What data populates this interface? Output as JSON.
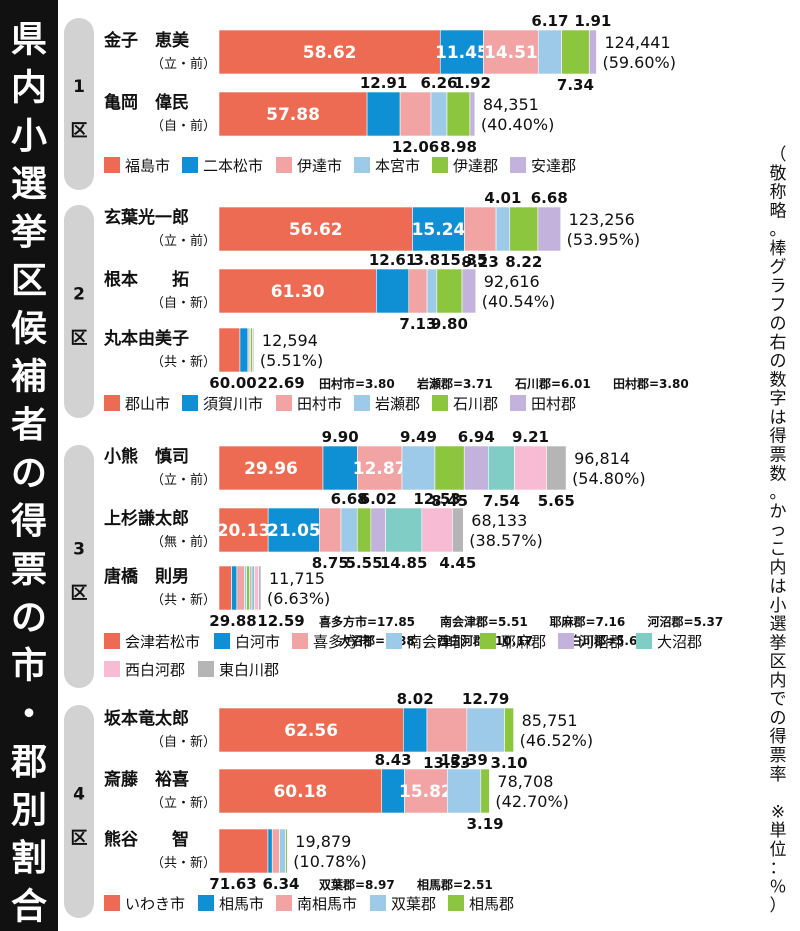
{
  "title": "県内小選挙区候補者の得票の市・郡別割合",
  "note": "（敬称略。棒グラフの右の数字は得票数。かっこ内は小選挙区内での得票率　※単位：％）",
  "colors": {
    "red": "#ec6b52",
    "blue": "#0f90d4",
    "pink": "#f2a3a3",
    "lightblue": "#9ecae9",
    "green": "#8cc63f",
    "lavender": "#c3b2dc",
    "teal": "#7fcdc4",
    "lightpink": "#f7bcd4",
    "gray": "#b5b5b5"
  },
  "chart_data": [
    {
      "type": "bar",
      "district": "1",
      "district_suffix": "区",
      "legend": [
        {
          "name": "福島市",
          "color": "red"
        },
        {
          "name": "二本松市",
          "color": "blue"
        },
        {
          "name": "伊達市",
          "color": "pink"
        },
        {
          "name": "本宮市",
          "color": "lightblue"
        },
        {
          "name": "伊達郡",
          "color": "green"
        },
        {
          "name": "安達郡",
          "color": "lavender"
        }
      ],
      "candidates": [
        {
          "name": "金子　恵美",
          "affil": "（立・前）",
          "votes": "124,441",
          "rate": "(59.60%)",
          "values": [
            58.62,
            11.45,
            14.51,
            6.17,
            7.34,
            1.91
          ]
        },
        {
          "name": "亀岡　偉民",
          "affil": "（自・前）",
          "votes": "84,351",
          "rate": "(40.40%)",
          "values": [
            57.88,
            12.91,
            12.06,
            6.26,
            8.98,
            1.92
          ]
        }
      ]
    },
    {
      "type": "bar",
      "district": "2",
      "district_suffix": "区",
      "legend": [
        {
          "name": "郡山市",
          "color": "red"
        },
        {
          "name": "須賀川市",
          "color": "blue"
        },
        {
          "name": "田村市",
          "color": "pink"
        },
        {
          "name": "岩瀬郡",
          "color": "lightblue"
        },
        {
          "name": "石川郡",
          "color": "green"
        },
        {
          "name": "田村郡",
          "color": "lavender"
        }
      ],
      "candidates": [
        {
          "name": "玄葉光一郎",
          "affil": "（立・前）",
          "votes": "123,256",
          "rate": "(53.95%)",
          "values": [
            56.62,
            15.24,
            9.23,
            4.01,
            8.22,
            6.68
          ]
        },
        {
          "name": "根本　　拓",
          "affil": "（自・新）",
          "votes": "92,616",
          "rate": "(40.54%)",
          "values": [
            61.3,
            12.61,
            7.13,
            3.81,
            9.8,
            5.35
          ]
        },
        {
          "name": "丸本由美子",
          "affil": "（共・新）",
          "votes": "12,594",
          "rate": "(5.51%)",
          "values": [
            60.0,
            22.69,
            3.8,
            3.71,
            6.01,
            3.8
          ],
          "extra": [
            "田村市=3.80",
            "岩瀬郡=3.71",
            "石川郡=6.01",
            "田村郡=3.80"
          ]
        }
      ]
    },
    {
      "type": "bar",
      "district": "3",
      "district_suffix": "区",
      "legend": [
        {
          "name": "会津若松市",
          "color": "red"
        },
        {
          "name": "白河市",
          "color": "blue"
        },
        {
          "name": "喜多方市",
          "color": "pink"
        },
        {
          "name": "南会津郡",
          "color": "lightblue"
        },
        {
          "name": "耶麻郡",
          "color": "green"
        },
        {
          "name": "河沼郡",
          "color": "lavender"
        },
        {
          "name": "大沼郡",
          "color": "teal"
        },
        {
          "name": "西白河郡",
          "color": "lightpink"
        },
        {
          "name": "東白川郡",
          "color": "gray"
        }
      ],
      "candidates": [
        {
          "name": "小熊　慎司",
          "affil": "（立・前）",
          "votes": "96,814",
          "rate": "(54.80%)",
          "values": [
            29.96,
            9.9,
            12.87,
            9.49,
            8.45,
            6.94,
            7.54,
            9.21,
            5.65
          ]
        },
        {
          "name": "上杉謙太郎",
          "affil": "（無・前）",
          "votes": "68,133",
          "rate": "(38.57%)",
          "values": [
            20.13,
            21.05,
            8.75,
            6.68,
            5.55,
            6.02,
            14.85,
            12.53,
            4.45
          ]
        },
        {
          "name": "唐橋　則男",
          "affil": "（共・新）",
          "votes": "11,715",
          "rate": "(6.63%)",
          "values": [
            29.88,
            12.59,
            17.85,
            5.51,
            7.16,
            5.37,
            5.88,
            10.17,
            5.6
          ],
          "extra": [
            "喜多方市=17.85",
            "南会津郡=5.51",
            "耶麻郡=7.16",
            "河沼郡=5.37",
            "大沼郡=5.88",
            "西白河郡=10.17",
            "東白川郡=5.60"
          ]
        }
      ]
    },
    {
      "type": "bar",
      "district": "4",
      "district_suffix": "区",
      "legend": [
        {
          "name": "いわき市",
          "color": "red"
        },
        {
          "name": "相馬市",
          "color": "blue"
        },
        {
          "name": "南相馬市",
          "color": "pink"
        },
        {
          "name": "双葉郡",
          "color": "lightblue"
        },
        {
          "name": "相馬郡",
          "color": "green"
        }
      ],
      "candidates": [
        {
          "name": "坂本竜太郎",
          "affil": "（自・新）",
          "votes": "85,751",
          "rate": "(46.52%)",
          "values": [
            62.56,
            8.02,
            13.53,
            12.79,
            3.1
          ]
        },
        {
          "name": "斎藤　裕喜",
          "affil": "（立・新）",
          "votes": "78,708",
          "rate": "(42.70%)",
          "values": [
            60.18,
            8.43,
            15.82,
            12.39,
            3.19
          ]
        },
        {
          "name": "熊谷　　智",
          "affil": "（共・新）",
          "votes": "19,879",
          "rate": "(10.78%)",
          "values": [
            71.63,
            6.34,
            10.55,
            8.97,
            2.51
          ],
          "extra": [
            "双葉郡=8.97",
            "相馬郡=2.51"
          ]
        }
      ]
    }
  ]
}
